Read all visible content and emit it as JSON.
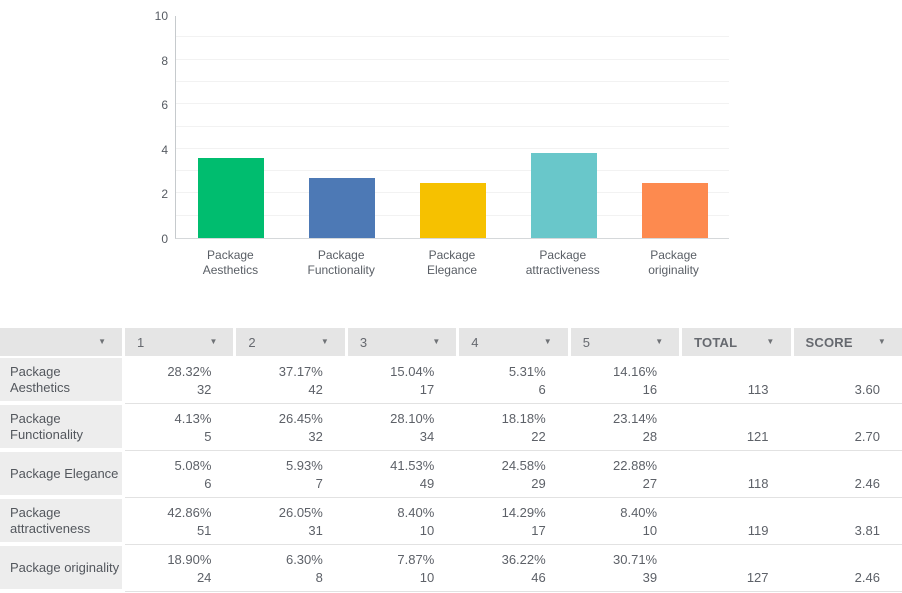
{
  "chart_data": {
    "type": "bar",
    "title": "",
    "xlabel": "",
    "ylabel": "",
    "categories": [
      "Package Aesthetics",
      "Package Functionality",
      "Package Elegance",
      "Package attractiveness",
      "Package originality"
    ],
    "values": [
      3.6,
      2.7,
      2.46,
      3.81,
      2.46
    ],
    "bar_colors": [
      "#00bd6f",
      "#4d79b5",
      "#f6c100",
      "#69c7ca",
      "#fd8a4f"
    ],
    "ylim": [
      0,
      10
    ],
    "yticks": [
      0,
      2,
      4,
      6,
      8,
      10
    ],
    "grid": "horizontal gridlines at every integer 1-9",
    "legend": "none"
  },
  "table": {
    "sort_icon": "▼",
    "headers": [
      "",
      "1",
      "2",
      "3",
      "4",
      "5",
      "TOTAL",
      "SCORE"
    ],
    "rows": [
      {
        "label": "Package Aesthetics",
        "cells": [
          {
            "pct": "28.32%",
            "count": "32"
          },
          {
            "pct": "37.17%",
            "count": "42"
          },
          {
            "pct": "15.04%",
            "count": "17"
          },
          {
            "pct": "5.31%",
            "count": "6"
          },
          {
            "pct": "14.16%",
            "count": "16"
          }
        ],
        "total": "113",
        "score": "3.60"
      },
      {
        "label": "Package Functionality",
        "cells": [
          {
            "pct": "4.13%",
            "count": "5"
          },
          {
            "pct": "26.45%",
            "count": "32"
          },
          {
            "pct": "28.10%",
            "count": "34"
          },
          {
            "pct": "18.18%",
            "count": "22"
          },
          {
            "pct": "23.14%",
            "count": "28"
          }
        ],
        "total": "121",
        "score": "2.70"
      },
      {
        "label": "Package Elegance",
        "cells": [
          {
            "pct": "5.08%",
            "count": "6"
          },
          {
            "pct": "5.93%",
            "count": "7"
          },
          {
            "pct": "41.53%",
            "count": "49"
          },
          {
            "pct": "24.58%",
            "count": "29"
          },
          {
            "pct": "22.88%",
            "count": "27"
          }
        ],
        "total": "118",
        "score": "2.46"
      },
      {
        "label": "Package attractiveness",
        "cells": [
          {
            "pct": "42.86%",
            "count": "51"
          },
          {
            "pct": "26.05%",
            "count": "31"
          },
          {
            "pct": "8.40%",
            "count": "10"
          },
          {
            "pct": "14.29%",
            "count": "17"
          },
          {
            "pct": "8.40%",
            "count": "10"
          }
        ],
        "total": "119",
        "score": "3.81"
      },
      {
        "label": "Package originality",
        "cells": [
          {
            "pct": "18.90%",
            "count": "24"
          },
          {
            "pct": "6.30%",
            "count": "8"
          },
          {
            "pct": "7.87%",
            "count": "10"
          },
          {
            "pct": "36.22%",
            "count": "46"
          },
          {
            "pct": "30.71%",
            "count": "39"
          }
        ],
        "total": "127",
        "score": "2.46"
      }
    ]
  }
}
